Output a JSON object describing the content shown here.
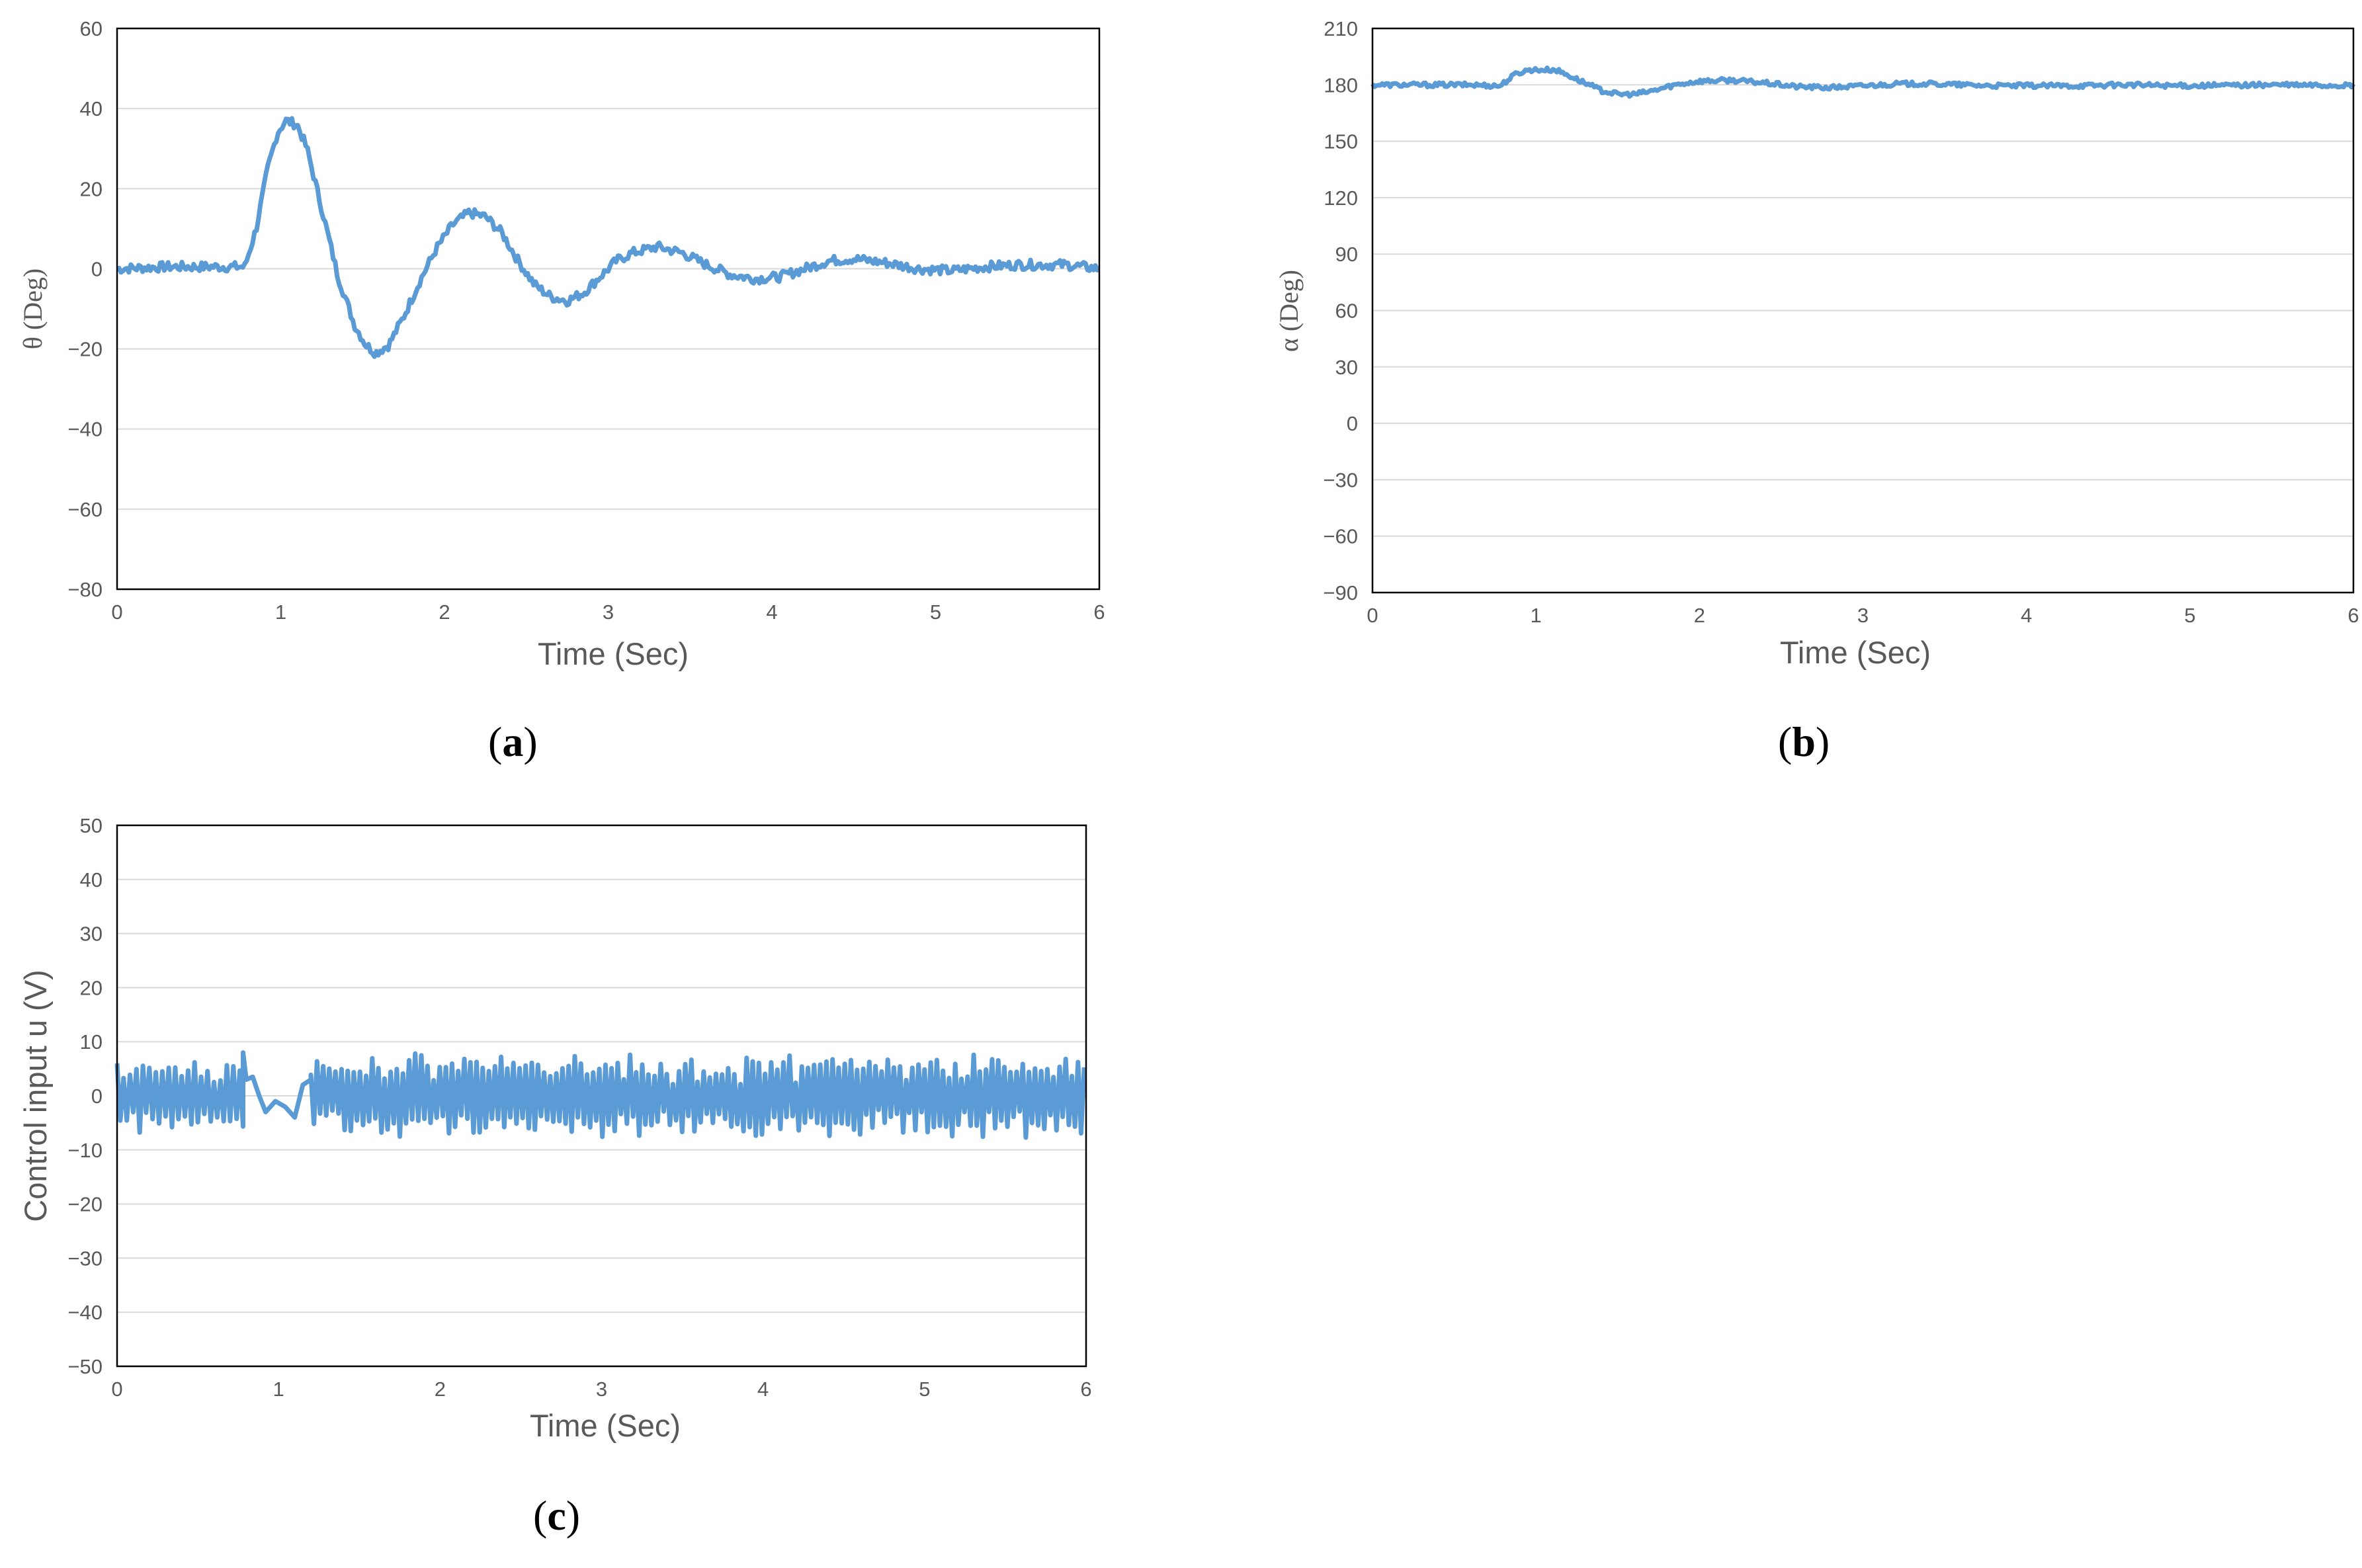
{
  "colors": {
    "line": "#5b9bd5",
    "grid": "#d9d9d9",
    "frame": "#000000"
  },
  "chart_data": [
    {
      "type": "line",
      "panel": "a",
      "caption": {
        "open": "(",
        "letter": "a",
        "close": ")"
      },
      "title": "",
      "xlabel": "Time (Sec)",
      "ylabel": "θ (Deg)",
      "xlim": [
        0,
        6
      ],
      "ylim": [
        -80,
        60
      ],
      "xticks": [
        0,
        1,
        2,
        3,
        4,
        5,
        6
      ],
      "yticks": [
        -80,
        -60,
        -40,
        -20,
        0,
        20,
        40,
        60
      ],
      "ytick_labels": [
        "−80",
        "−60",
        "−40",
        "−20",
        "0",
        "20",
        "40",
        "60"
      ],
      "grid": true,
      "legend": "none",
      "series": [
        {
          "noise": 1.2,
          "points": [
            [
              0,
              0
            ],
            [
              0.3,
              0.5
            ],
            [
              0.6,
              0.5
            ],
            [
              0.78,
              0.5
            ],
            [
              0.85,
              10
            ],
            [
              0.92,
              25
            ],
            [
              0.98,
              34
            ],
            [
              1.03,
              37
            ],
            [
              1.1,
              36
            ],
            [
              1.16,
              30
            ],
            [
              1.25,
              15
            ],
            [
              1.35,
              -2
            ],
            [
              1.45,
              -14
            ],
            [
              1.52,
              -19
            ],
            [
              1.58,
              -21
            ],
            [
              1.66,
              -19
            ],
            [
              1.75,
              -12
            ],
            [
              1.85,
              -3
            ],
            [
              1.95,
              5
            ],
            [
              2.05,
              11
            ],
            [
              2.15,
              14
            ],
            [
              2.25,
              13
            ],
            [
              2.35,
              9
            ],
            [
              2.45,
              2
            ],
            [
              2.55,
              -4
            ],
            [
              2.65,
              -7
            ],
            [
              2.75,
              -8
            ],
            [
              2.85,
              -6
            ],
            [
              2.95,
              -2
            ],
            [
              3.05,
              2
            ],
            [
              3.15,
              4
            ],
            [
              3.3,
              5.5
            ],
            [
              3.45,
              4
            ],
            [
              3.6,
              1
            ],
            [
              3.75,
              -1.5
            ],
            [
              3.9,
              -2.5
            ],
            [
              4.05,
              -2
            ],
            [
              4.2,
              0
            ],
            [
              4.35,
              2
            ],
            [
              4.5,
              2.5
            ],
            [
              4.7,
              1.5
            ],
            [
              4.9,
              0
            ],
            [
              5.1,
              -0.5
            ],
            [
              5.3,
              0.5
            ],
            [
              5.5,
              1
            ],
            [
              5.8,
              1
            ],
            [
              6,
              0
            ]
          ]
        }
      ]
    },
    {
      "type": "line",
      "panel": "b",
      "caption": {
        "open": "(",
        "letter": "b",
        "close": ")"
      },
      "title": "",
      "xlabel": "Time (Sec)",
      "ylabel": "α (Deg)",
      "xlim": [
        0,
        6
      ],
      "ylim": [
        -90,
        210
      ],
      "xticks": [
        0,
        1,
        2,
        3,
        4,
        5,
        6
      ],
      "yticks": [
        -90,
        -60,
        -30,
        0,
        30,
        60,
        90,
        120,
        150,
        180,
        210
      ],
      "ytick_labels": [
        "−90",
        "−60",
        "−30",
        "0",
        "30",
        "60",
        "90",
        "120",
        "150",
        "180",
        "210"
      ],
      "grid": true,
      "legend": "none",
      "series": [
        {
          "noise": 1.2,
          "points": [
            [
              0,
              180
            ],
            [
              0.3,
              180
            ],
            [
              0.6,
              180
            ],
            [
              0.78,
              179.5
            ],
            [
              0.88,
              186
            ],
            [
              0.96,
              188
            ],
            [
              1.05,
              188
            ],
            [
              1.12,
              188
            ],
            [
              1.2,
              185
            ],
            [
              1.3,
              181
            ],
            [
              1.4,
              177
            ],
            [
              1.5,
              175
            ],
            [
              1.6,
              175
            ],
            [
              1.7,
              176.5
            ],
            [
              1.85,
              180
            ],
            [
              2.0,
              182
            ],
            [
              2.2,
              182.5
            ],
            [
              2.4,
              181
            ],
            [
              2.6,
              179
            ],
            [
              2.8,
              178.5
            ],
            [
              3.0,
              179.5
            ],
            [
              3.2,
              180.5
            ],
            [
              3.4,
              180.5
            ],
            [
              3.6,
              180
            ],
            [
              3.8,
              179.5
            ],
            [
              4.0,
              179.5
            ],
            [
              4.3,
              179.5
            ],
            [
              4.6,
              180
            ],
            [
              5.0,
              179.5
            ],
            [
              5.5,
              180
            ],
            [
              6,
              179.5
            ]
          ]
        }
      ]
    },
    {
      "type": "line",
      "panel": "c",
      "caption": {
        "open": "(",
        "letter": "c",
        "close": ")"
      },
      "title": "",
      "xlabel": "Time (Sec)",
      "ylabel": "Control input u (V)",
      "xlim": [
        0,
        6
      ],
      "ylim": [
        -50,
        50
      ],
      "xticks": [
        0,
        1,
        2,
        3,
        4,
        5,
        6
      ],
      "yticks": [
        -50,
        -40,
        -30,
        -20,
        -10,
        0,
        10,
        20,
        30,
        40,
        50
      ],
      "ytick_labels": [
        "−50",
        "−40",
        "−30",
        "−20",
        "−10",
        "0",
        "10",
        "20",
        "30",
        "40",
        "50"
      ],
      "grid": true,
      "legend": "none",
      "series": [
        {
          "oscillation": [
            {
              "t0": 0.0,
              "t1": 0.78,
              "amplitude": 6.0,
              "spread": 1.2,
              "period": 0.04
            },
            {
              "t0": 1.2,
              "t1": 6.0,
              "amplitude": 6.5,
              "spread": 1.5,
              "period": 0.038
            }
          ],
          "points": [
            [
              0.78,
              8
            ],
            [
              0.8,
              3
            ],
            [
              0.84,
              3.5
            ],
            [
              0.88,
              0
            ],
            [
              0.92,
              -3
            ],
            [
              0.98,
              -1
            ],
            [
              1.04,
              -2
            ],
            [
              1.1,
              -4
            ],
            [
              1.15,
              2
            ],
            [
              1.2,
              3
            ]
          ]
        }
      ]
    }
  ]
}
